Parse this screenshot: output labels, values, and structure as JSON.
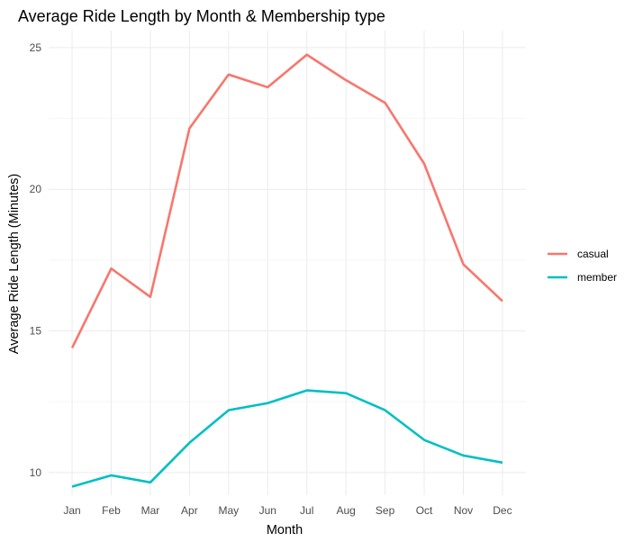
{
  "chart_data": {
    "type": "line",
    "title": "Average Ride Length by Month & Membership type",
    "xlabel": "Month",
    "ylabel": "Average Ride Length (Minutes)",
    "categories": [
      "Jan",
      "Feb",
      "Mar",
      "Apr",
      "May",
      "Jun",
      "Jul",
      "Aug",
      "Sep",
      "Oct",
      "Nov",
      "Dec"
    ],
    "yticks": [
      10,
      15,
      20,
      25
    ],
    "ylim": [
      9.2,
      25.6
    ],
    "grid": true,
    "legend_position": "right",
    "series": [
      {
        "name": "casual",
        "color": "#F8766D",
        "values": [
          14.4,
          17.2,
          16.2,
          22.15,
          24.05,
          23.6,
          24.75,
          23.85,
          23.05,
          20.9,
          17.35,
          16.05
        ]
      },
      {
        "name": "member",
        "color": "#00BFC4",
        "values": [
          9.5,
          9.9,
          9.65,
          11.05,
          12.2,
          12.45,
          12.9,
          12.8,
          12.2,
          11.15,
          10.6,
          10.35
        ]
      }
    ]
  }
}
